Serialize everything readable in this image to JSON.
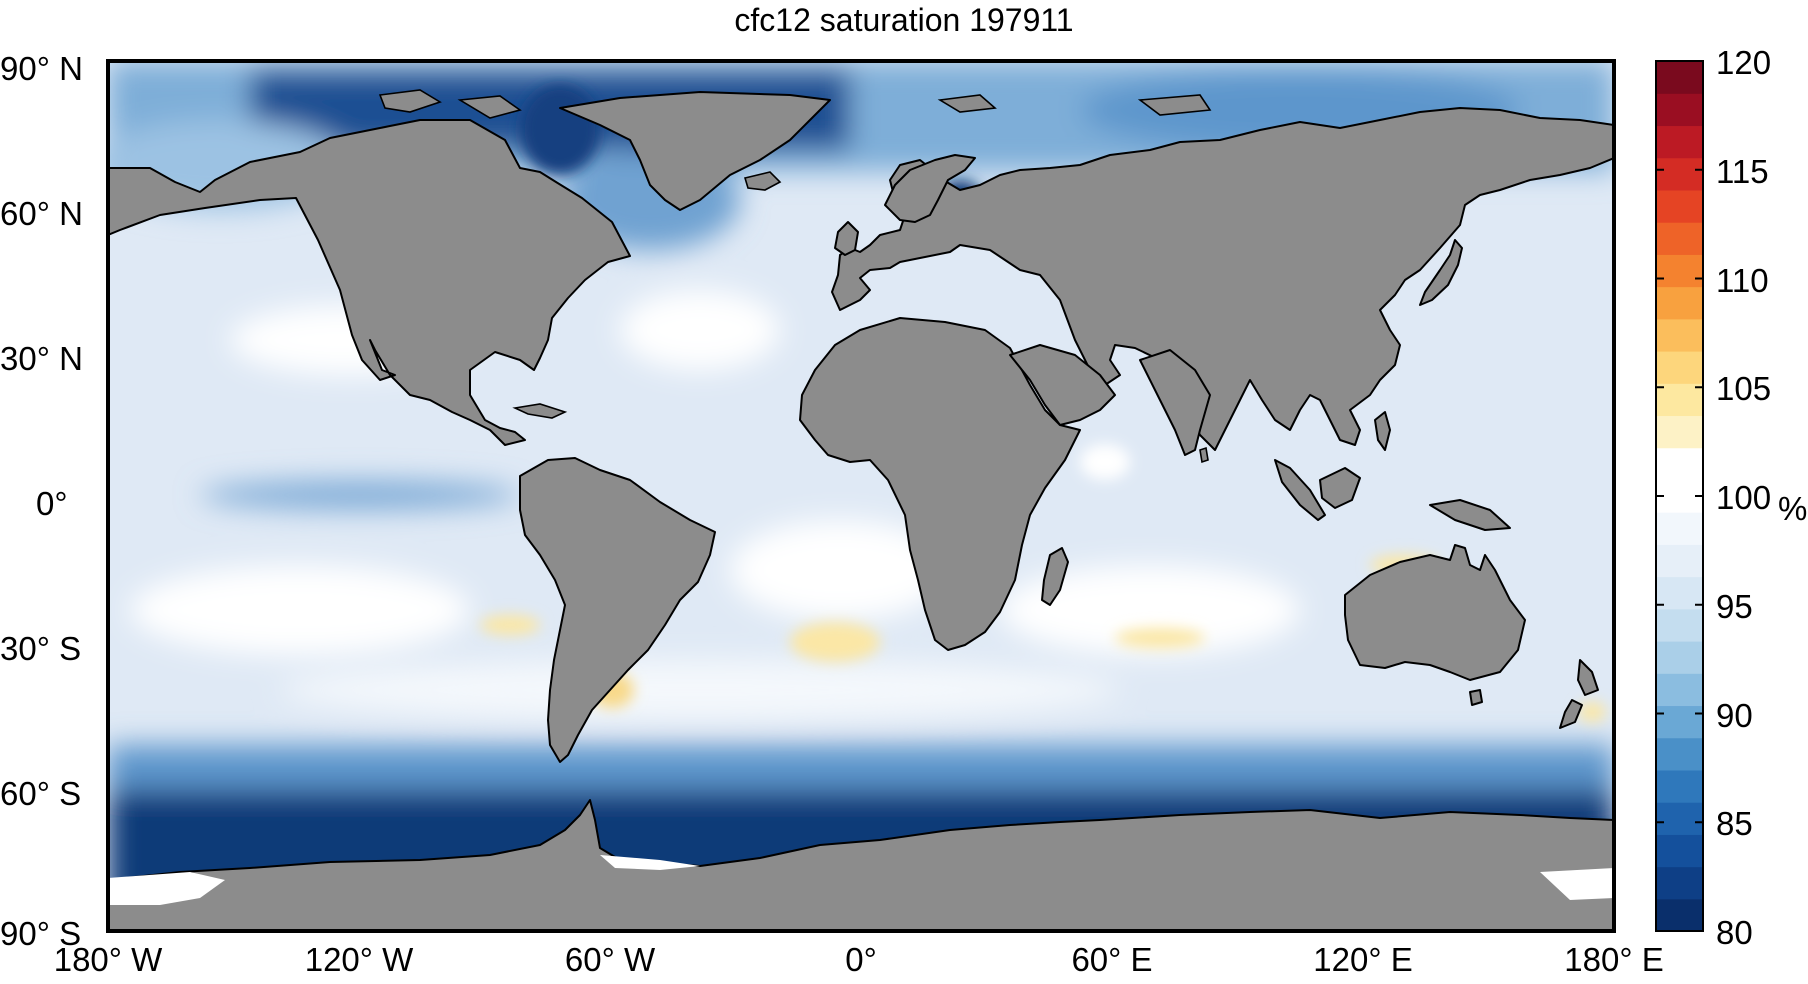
{
  "title": "cfc12 saturation 197911",
  "y_ticks": [
    "90° N",
    "60° N",
    "30° N",
    "0°",
    "30° S",
    "60° S",
    "90° S"
  ],
  "x_ticks": [
    "180° W",
    "120° W",
    "60° W",
    "0°",
    "60° E",
    "120° E",
    "180° E"
  ],
  "colorbar": {
    "ticks": [
      "120",
      "115",
      "110",
      "105",
      "100",
      "95",
      "90",
      "85",
      "80"
    ],
    "unit": "%",
    "range": [
      80,
      120
    ],
    "colors": [
      "#0a2f6b",
      "#0e3f86",
      "#14509c",
      "#1f63ad",
      "#2f78bb",
      "#4a90c8",
      "#6aa8d5",
      "#8bbde0",
      "#aacfe8",
      "#c4ddef",
      "#d7e7f4",
      "#e6eff8",
      "#f2f7fc",
      "#ffffff",
      "#ffffff",
      "#fdf2c6",
      "#fde8a0",
      "#fdd67c",
      "#fbbe5c",
      "#f8a13f",
      "#f4822f",
      "#ee6328",
      "#e54424",
      "#d42c24",
      "#bc1a24",
      "#9a0e22",
      "#7a0a1e"
    ]
  },
  "colors": {
    "land": "#8c8c8c",
    "coast": "#000000",
    "ocean_base": "#dfe9f5",
    "deep_blue": "#0d3a78",
    "mid_blue": "#3f86c4",
    "light_blue": "#b7d2ea",
    "pale": "#ffffff",
    "yellow": "#fbe7a6"
  }
}
